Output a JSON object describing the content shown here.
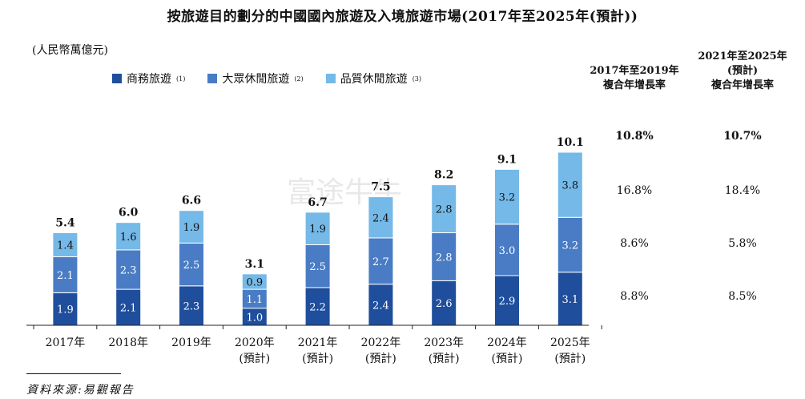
{
  "title": "按旅遊目的劃分的中國國內旅遊及入境旅遊市場(2017年至2025年(預計))",
  "unit": "(人民幣萬億元)",
  "legend": [
    {
      "label": "商務旅遊",
      "note": "(1)"
    },
    {
      "label": "大眾休閒旅遊",
      "note": "(2)"
    },
    {
      "label": "品質休閒旅遊",
      "note": "(3)"
    }
  ],
  "colors": {
    "business": "#1f4e9c",
    "mass": "#4a7cc5",
    "quality": "#74b9e8"
  },
  "chart_data": {
    "type": "bar",
    "stacked": true,
    "categories": [
      "2017年",
      "2018年",
      "2019年",
      "2020年\n(預計)",
      "2021年\n(預計)",
      "2022年\n(預計)",
      "2023年\n(預計)",
      "2024年\n(預計)",
      "2025年\n(預計)"
    ],
    "series": [
      {
        "name": "商務旅遊",
        "values": [
          1.9,
          2.1,
          2.3,
          1.0,
          2.2,
          2.4,
          2.6,
          2.9,
          3.1
        ]
      },
      {
        "name": "大眾休閒旅遊",
        "values": [
          2.1,
          2.3,
          2.5,
          1.1,
          2.5,
          2.7,
          2.8,
          3.0,
          3.2
        ]
      },
      {
        "name": "品質休閒旅遊",
        "values": [
          1.4,
          1.6,
          1.9,
          0.9,
          1.9,
          2.4,
          2.8,
          3.2,
          3.8
        ]
      }
    ],
    "totals": [
      "5.4",
      "6.0",
      "6.6",
      "3.1",
      "6.7",
      "7.5",
      "8.2",
      "9.1",
      "10.1"
    ],
    "ylim": [
      0,
      10.1
    ]
  },
  "cagr": {
    "headers": [
      "2017年至2019年\n複合年增長率",
      "2021年至2025年\n(預計)\n複合年增長率"
    ],
    "total": [
      "10.8%",
      "10.7%"
    ],
    "quality": [
      "16.8%",
      "18.4%"
    ],
    "mass": [
      "8.6%",
      "5.8%"
    ],
    "business": [
      "8.8%",
      "8.5%"
    ]
  },
  "watermark": "富途牛牛",
  "source": "資料來源:易觀報告"
}
